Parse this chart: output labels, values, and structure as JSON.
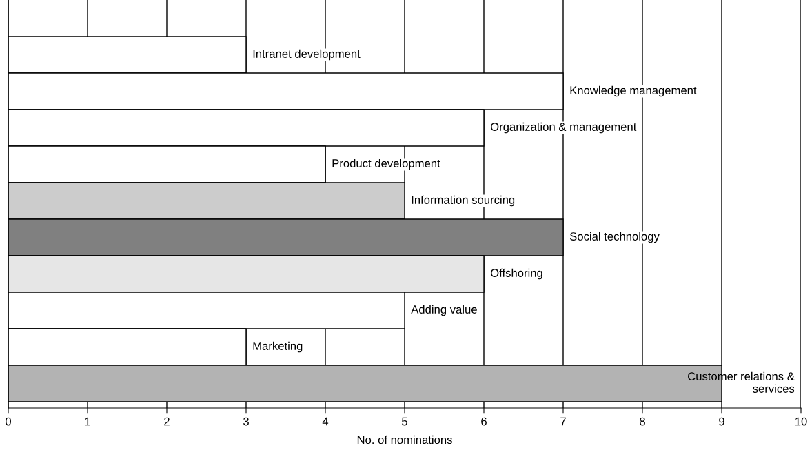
{
  "chart_data": {
    "type": "bar",
    "orientation": "horizontal",
    "xlabel": "No. of nominations",
    "categories": [
      "Intranet development",
      "Knowledge management",
      "Organization & management",
      "Product development",
      "Information sourcing",
      "Social technology",
      "Offshoring",
      "Adding value",
      "Marketing",
      "Customer relations &\nservices"
    ],
    "values": [
      3,
      7,
      6,
      4,
      5,
      7,
      6,
      5,
      3,
      9
    ],
    "colors": [
      "#ffffff",
      "#ffffff",
      "#ffffff",
      "#ffffff",
      "#cccccc",
      "#808080",
      "#e6e6e6",
      "#ffffff",
      "#ffffff",
      "#b3b3b3"
    ],
    "xlim": [
      0,
      10
    ],
    "xticks": [
      0,
      1,
      2,
      3,
      4,
      5,
      6,
      7,
      8,
      9,
      10
    ],
    "grid": "x"
  }
}
